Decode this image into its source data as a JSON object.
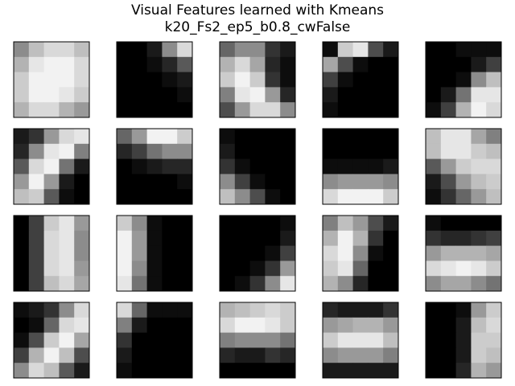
{
  "title": "Visual Features learned with Kmeans",
  "subtitle": "k20_Fs2_ep5_b0.8_cwFalse",
  "chart_data": {
    "type": "heatmap",
    "title": "Visual Features learned with Kmeans",
    "subtitle": "k20_Fs2_ep5_b0.8_cwFalse",
    "colormap": "gray",
    "value_range": [
      0,
      1
    ],
    "grid_rows": 4,
    "grid_cols": 5,
    "patch_size": 5,
    "axes_visible": false,
    "patches": [
      [
        [
          0.55,
          0.75,
          0.85,
          0.85,
          0.75
        ],
        [
          0.7,
          0.9,
          0.95,
          0.95,
          0.85
        ],
        [
          0.8,
          0.95,
          0.95,
          0.95,
          0.85
        ],
        [
          0.8,
          0.95,
          0.95,
          0.9,
          0.8
        ],
        [
          0.7,
          0.85,
          0.85,
          0.7,
          0.6
        ]
      ],
      [
        [
          0.0,
          0.0,
          0.1,
          0.55,
          0.85
        ],
        [
          0.0,
          0.0,
          0.05,
          0.15,
          0.35
        ],
        [
          0.0,
          0.0,
          0.0,
          0.05,
          0.1
        ],
        [
          0.0,
          0.0,
          0.0,
          0.0,
          0.05
        ],
        [
          0.0,
          0.0,
          0.0,
          0.0,
          0.0
        ]
      ],
      [
        [
          0.4,
          0.55,
          0.55,
          0.2,
          0.1
        ],
        [
          0.7,
          0.85,
          0.65,
          0.15,
          0.05
        ],
        [
          0.8,
          0.95,
          0.8,
          0.2,
          0.05
        ],
        [
          0.5,
          0.9,
          0.95,
          0.6,
          0.15
        ],
        [
          0.3,
          0.6,
          0.85,
          0.85,
          0.55
        ]
      ],
      [
        [
          0.05,
          0.8,
          0.9,
          0.3,
          0.1
        ],
        [
          0.65,
          0.3,
          0.05,
          0.0,
          0.0
        ],
        [
          0.25,
          0.05,
          0.0,
          0.0,
          0.0
        ],
        [
          0.1,
          0.0,
          0.0,
          0.0,
          0.0
        ],
        [
          0.05,
          0.0,
          0.0,
          0.0,
          0.0
        ]
      ],
      [
        [
          0.0,
          0.0,
          0.05,
          0.05,
          0.05
        ],
        [
          0.0,
          0.0,
          0.0,
          0.1,
          0.25
        ],
        [
          0.0,
          0.0,
          0.05,
          0.55,
          0.75
        ],
        [
          0.0,
          0.1,
          0.45,
          0.9,
          0.9
        ],
        [
          0.05,
          0.25,
          0.7,
          0.95,
          0.85
        ]
      ],
      [
        [
          0.1,
          0.2,
          0.6,
          0.85,
          0.9
        ],
        [
          0.15,
          0.55,
          0.9,
          0.95,
          0.5
        ],
        [
          0.35,
          0.85,
          0.95,
          0.45,
          0.1
        ],
        [
          0.6,
          0.95,
          0.6,
          0.1,
          0.0
        ],
        [
          0.75,
          0.8,
          0.35,
          0.05,
          0.0
        ]
      ],
      [
        [
          0.4,
          0.6,
          0.95,
          0.95,
          0.8
        ],
        [
          0.15,
          0.25,
          0.45,
          0.55,
          0.55
        ],
        [
          0.0,
          0.05,
          0.1,
          0.15,
          0.15
        ],
        [
          0.0,
          0.0,
          0.0,
          0.0,
          0.05
        ],
        [
          0.0,
          0.0,
          0.0,
          0.0,
          0.0
        ]
      ],
      [
        [
          0.05,
          0.0,
          0.0,
          0.0,
          0.0
        ],
        [
          0.1,
          0.0,
          0.0,
          0.0,
          0.0
        ],
        [
          0.2,
          0.05,
          0.0,
          0.0,
          0.0
        ],
        [
          0.55,
          0.25,
          0.05,
          0.0,
          0.0
        ],
        [
          0.75,
          0.55,
          0.3,
          0.05,
          0.0
        ]
      ],
      [
        [
          0.0,
          0.0,
          0.0,
          0.0,
          0.0
        ],
        [
          0.0,
          0.0,
          0.0,
          0.0,
          0.0
        ],
        [
          0.05,
          0.05,
          0.05,
          0.05,
          0.1
        ],
        [
          0.55,
          0.6,
          0.6,
          0.6,
          0.55
        ],
        [
          0.85,
          0.95,
          0.95,
          0.95,
          0.8
        ]
      ],
      [
        [
          0.75,
          0.9,
          0.9,
          0.65,
          0.5
        ],
        [
          0.75,
          0.9,
          0.9,
          0.8,
          0.75
        ],
        [
          0.35,
          0.6,
          0.8,
          0.85,
          0.85
        ],
        [
          0.1,
          0.3,
          0.6,
          0.75,
          0.8
        ],
        [
          0.05,
          0.2,
          0.4,
          0.6,
          0.75
        ]
      ],
      [
        [
          0.0,
          0.25,
          0.8,
          0.9,
          0.6
        ],
        [
          0.0,
          0.25,
          0.85,
          0.9,
          0.55
        ],
        [
          0.0,
          0.25,
          0.85,
          0.9,
          0.55
        ],
        [
          0.0,
          0.25,
          0.85,
          0.9,
          0.6
        ],
        [
          0.0,
          0.25,
          0.75,
          0.85,
          0.65
        ]
      ],
      [
        [
          0.8,
          0.55,
          0.05,
          0.0,
          0.0
        ],
        [
          0.95,
          0.6,
          0.05,
          0.0,
          0.0
        ],
        [
          0.95,
          0.6,
          0.05,
          0.0,
          0.0
        ],
        [
          0.95,
          0.55,
          0.05,
          0.0,
          0.0
        ],
        [
          0.9,
          0.45,
          0.05,
          0.0,
          0.0
        ]
      ],
      [
        [
          0.0,
          0.0,
          0.0,
          0.0,
          0.05
        ],
        [
          0.0,
          0.0,
          0.0,
          0.0,
          0.1
        ],
        [
          0.0,
          0.0,
          0.0,
          0.05,
          0.25
        ],
        [
          0.0,
          0.0,
          0.05,
          0.2,
          0.6
        ],
        [
          0.0,
          0.05,
          0.2,
          0.55,
          0.9
        ]
      ],
      [
        [
          0.5,
          0.75,
          0.6,
          0.3,
          0.1
        ],
        [
          0.7,
          0.95,
          0.7,
          0.2,
          0.0
        ],
        [
          0.85,
          0.95,
          0.55,
          0.05,
          0.0
        ],
        [
          0.8,
          0.9,
          0.4,
          0.0,
          0.0
        ],
        [
          0.7,
          0.55,
          0.15,
          0.0,
          0.0
        ]
      ],
      [
        [
          0.05,
          0.0,
          0.0,
          0.0,
          0.0
        ],
        [
          0.2,
          0.15,
          0.15,
          0.2,
          0.25
        ],
        [
          0.6,
          0.7,
          0.7,
          0.7,
          0.65
        ],
        [
          0.85,
          0.9,
          0.95,
          0.9,
          0.8
        ],
        [
          0.55,
          0.65,
          0.65,
          0.55,
          0.45
        ]
      ],
      [
        [
          0.05,
          0.1,
          0.2,
          0.55,
          0.85
        ],
        [
          0.0,
          0.05,
          0.4,
          0.85,
          0.9
        ],
        [
          0.05,
          0.3,
          0.8,
          0.95,
          0.65
        ],
        [
          0.25,
          0.7,
          0.95,
          0.75,
          0.3
        ],
        [
          0.55,
          0.85,
          0.75,
          0.35,
          0.1
        ]
      ],
      [
        [
          0.85,
          0.4,
          0.05,
          0.05,
          0.05
        ],
        [
          0.5,
          0.1,
          0.0,
          0.0,
          0.0
        ],
        [
          0.2,
          0.0,
          0.0,
          0.0,
          0.0
        ],
        [
          0.1,
          0.0,
          0.0,
          0.0,
          0.0
        ],
        [
          0.05,
          0.0,
          0.0,
          0.0,
          0.0
        ]
      ],
      [
        [
          0.7,
          0.75,
          0.8,
          0.85,
          0.8
        ],
        [
          0.85,
          0.95,
          0.95,
          0.9,
          0.8
        ],
        [
          0.5,
          0.55,
          0.55,
          0.55,
          0.45
        ],
        [
          0.15,
          0.1,
          0.1,
          0.2,
          0.15
        ],
        [
          0.0,
          0.0,
          0.0,
          0.0,
          0.0
        ]
      ],
      [
        [
          0.15,
          0.1,
          0.1,
          0.1,
          0.2
        ],
        [
          0.6,
          0.65,
          0.7,
          0.7,
          0.6
        ],
        [
          0.8,
          0.9,
          0.9,
          0.9,
          0.75
        ],
        [
          0.55,
          0.6,
          0.6,
          0.6,
          0.5
        ],
        [
          0.1,
          0.1,
          0.1,
          0.1,
          0.1
        ]
      ],
      [
        [
          0.0,
          0.0,
          0.05,
          0.6,
          0.8
        ],
        [
          0.0,
          0.0,
          0.1,
          0.75,
          0.85
        ],
        [
          0.0,
          0.0,
          0.1,
          0.8,
          0.8
        ],
        [
          0.0,
          0.0,
          0.1,
          0.8,
          0.75
        ],
        [
          0.0,
          0.0,
          0.15,
          0.7,
          0.6
        ]
      ]
    ]
  }
}
